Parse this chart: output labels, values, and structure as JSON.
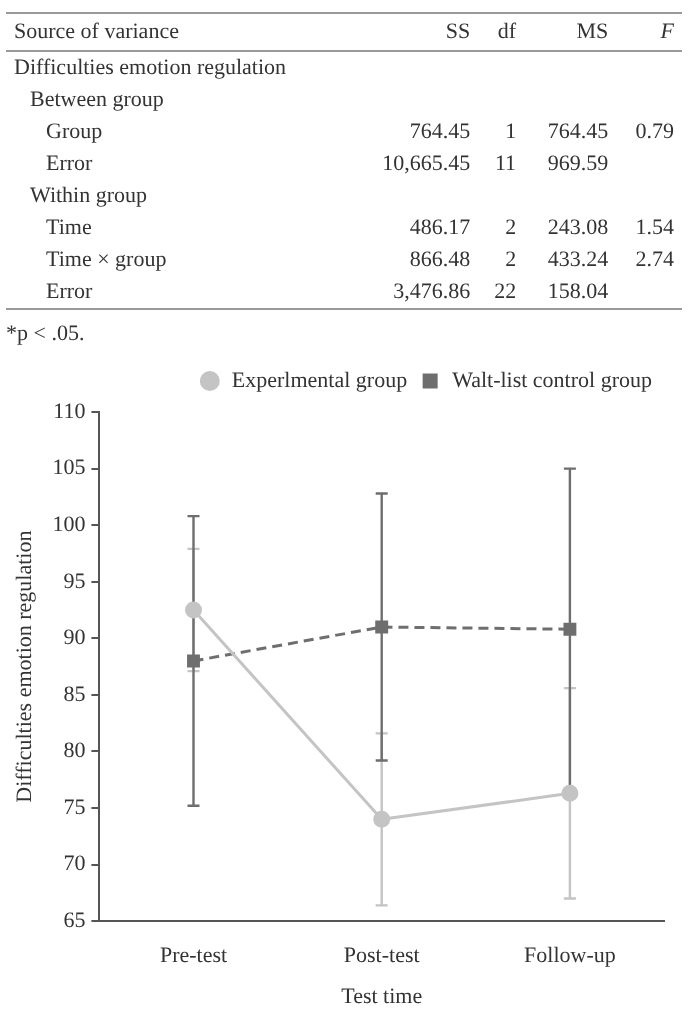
{
  "chart_data": [
    {
      "type": "other",
      "categories": [
        "Source of variance",
        "SS",
        "df",
        "MS",
        "F"
      ],
      "y_categories": [
        "Difficulties emotion regulation",
        "Between group",
        "Group",
        "Error",
        "Within group",
        "Time",
        "Time × group",
        "Error"
      ],
      "cell_labels": [
        [
          null,
          null,
          null,
          null
        ],
        [
          null,
          null,
          null,
          null
        ],
        [
          "764.45",
          "1",
          "764.45",
          "0.79"
        ],
        [
          "10,665.45",
          "11",
          "969.59",
          null
        ],
        [
          null,
          null,
          null,
          null
        ],
        [
          "486.17",
          "2",
          "243.08",
          "1.54"
        ],
        [
          "866.48",
          "2",
          "433.24",
          "2.74"
        ],
        [
          "3,476.86",
          "22",
          "158.04",
          null
        ]
      ],
      "annotations": [
        "*p < .05."
      ]
    },
    {
      "type": "line",
      "categories": [
        "Pre-test",
        "Post-test",
        "Follow-up"
      ],
      "xlabel": "Test time",
      "ylabel": "Difficulties emotion regulation",
      "ylim": [
        65,
        110
      ],
      "yticks": [
        65,
        70,
        75,
        80,
        85,
        90,
        95,
        100,
        105,
        110
      ],
      "grid": false,
      "legend": "top right",
      "series": [
        {
          "name": "Experlmental group",
          "color": "#c4c4c4",
          "values": [
            92.5,
            74,
            76.3
          ],
          "errors": [
            5.4,
            7.6,
            9.3
          ],
          "marker": "circle",
          "line_style": "solid"
        },
        {
          "name": "Walt-list control group",
          "color": "#6e6e6e",
          "values": [
            88,
            91,
            90.8
          ],
          "errors": [
            12.8,
            11.8,
            14.2
          ],
          "marker": "square",
          "line_style": "dashed"
        }
      ]
    }
  ]
}
